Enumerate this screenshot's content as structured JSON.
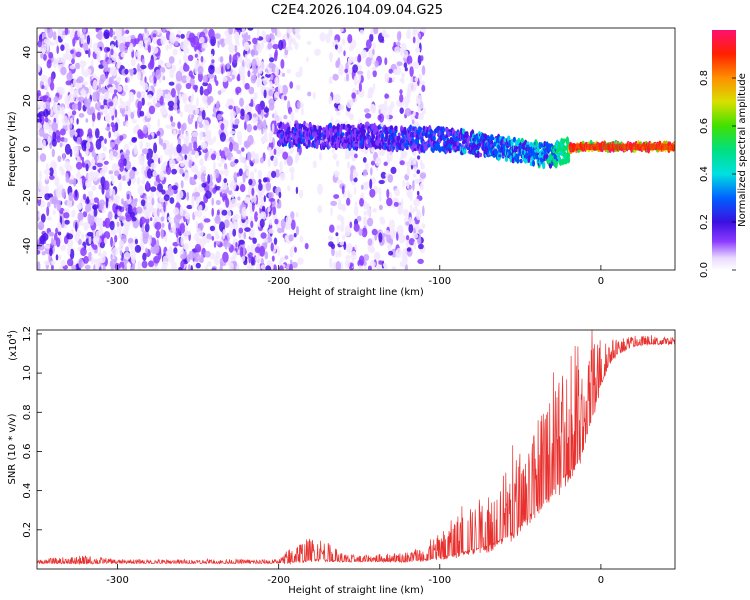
{
  "title": "C2E4.2026.104.09.04.G25",
  "chart_data": [
    {
      "type": "heatmap",
      "name": "spectrogram",
      "xlabel": "Height of straight line (km)",
      "ylabel": "Frequency (Hz)",
      "xlim": [
        -350,
        46
      ],
      "ylim": [
        -50,
        50
      ],
      "x_ticks": [
        -300,
        -200,
        -100,
        0
      ],
      "y_ticks": [
        -40,
        -20,
        0,
        20,
        40
      ],
      "x_tick_labels": [
        "-300",
        "-200",
        "-100",
        "0"
      ],
      "y_tick_labels": [
        "-40",
        "-20",
        "0",
        "20",
        "40"
      ],
      "colorbar": {
        "label": "Normalized spectral amplitude",
        "range": [
          0,
          1
        ],
        "ticks": [
          0.0,
          0.2,
          0.4,
          0.6,
          0.8
        ],
        "tick_labels": [
          "0.0",
          "0.2",
          "0.4",
          "0.6",
          "0.8"
        ]
      },
      "ridge": {
        "description": "dominant frequency track",
        "x": [
          -200,
          -150,
          -100,
          -75,
          -50,
          -30,
          -20,
          -10,
          0,
          10,
          46
        ],
        "y": [
          6,
          5,
          4,
          2,
          -1,
          -3,
          0,
          1,
          1,
          1,
          1
        ],
        "amplitude": [
          0.25,
          0.25,
          0.3,
          0.35,
          0.4,
          0.45,
          0.9,
          0.95,
          1.0,
          1.0,
          1.0
        ]
      },
      "noise_regions": [
        {
          "x_range": [
            -350,
            -200
          ],
          "density": "high"
        },
        {
          "x_range": [
            -200,
            -120
          ],
          "density": "medium"
        },
        {
          "x_range": [
            -120,
            -110
          ],
          "density": "low"
        }
      ]
    },
    {
      "type": "line",
      "name": "snr",
      "xlabel": "Height of straight line (km)",
      "ylabel": "SNR (10 * v/v)",
      "scale_label": "(x10",
      "scale_exp": "4",
      "scale_close": ")",
      "xlim": [
        -350,
        46
      ],
      "ylim": [
        0,
        1.22
      ],
      "x_ticks": [
        -300,
        -200,
        -100,
        0
      ],
      "y_ticks": [
        0.2,
        0.4,
        0.6,
        0.8,
        1.0,
        1.2
      ],
      "x_tick_labels": [
        "-300",
        "-200",
        "-100",
        "0"
      ],
      "y_tick_labels": [
        "0.2",
        "0.4",
        "0.6",
        "0.8",
        "1.0",
        "1.2"
      ],
      "color": "#e8312e",
      "envelope": {
        "x": [
          -350,
          -320,
          -300,
          -250,
          -200,
          -190,
          -175,
          -160,
          -150,
          -120,
          -110,
          -100,
          -90,
          -80,
          -70,
          -60,
          -50,
          -40,
          -30,
          -20,
          -15,
          -10,
          -5,
          0,
          5,
          10,
          20,
          30,
          46
        ],
        "base": [
          0.03,
          0.03,
          0.03,
          0.03,
          0.03,
          0.04,
          0.05,
          0.04,
          0.04,
          0.04,
          0.05,
          0.06,
          0.08,
          0.1,
          0.12,
          0.16,
          0.22,
          0.32,
          0.4,
          0.5,
          0.55,
          0.65,
          0.8,
          0.95,
          1.05,
          1.1,
          1.14,
          1.15,
          1.15
        ],
        "spread": [
          0.02,
          0.04,
          0.02,
          0.02,
          0.02,
          0.1,
          0.12,
          0.04,
          0.03,
          0.05,
          0.08,
          0.12,
          0.2,
          0.22,
          0.3,
          0.35,
          0.4,
          0.45,
          0.5,
          0.55,
          0.65,
          0.3,
          0.4,
          0.25,
          0.12,
          0.08,
          0.05,
          0.04,
          0.03
        ]
      }
    }
  ],
  "colors": {
    "plot_bg": "#ffffff",
    "frame": "#000000",
    "line": "#e8312e"
  }
}
